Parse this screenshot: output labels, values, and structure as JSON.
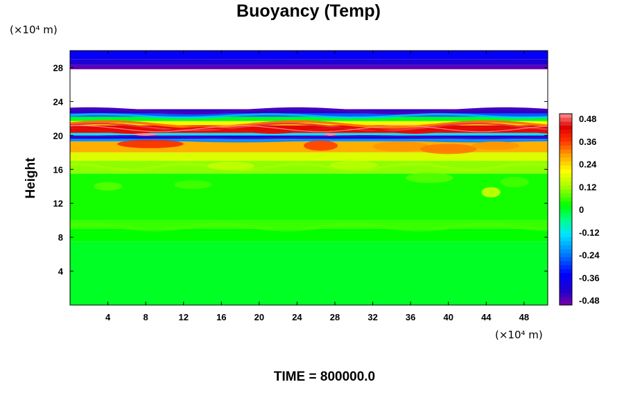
{
  "chart_data": {
    "type": "heatmap",
    "title": "Buoyancy (Temp)",
    "ylabel": "Height",
    "xunit": "(×10⁴ m)",
    "yunit": "(×10⁴ m)",
    "xlim": [
      0,
      50.5
    ],
    "ylim": [
      0,
      30
    ],
    "xticks": [
      4,
      8,
      12,
      16,
      20,
      24,
      28,
      32,
      36,
      40,
      44,
      48
    ],
    "yticks": [
      4,
      8,
      12,
      16,
      20,
      24,
      28
    ],
    "colorbar": {
      "min": -0.48,
      "max": 0.48,
      "ticks": [
        "0.48",
        "0.36",
        "0.24",
        "0.12",
        "0",
        "-0.12",
        "-0.24",
        "-0.36",
        "-0.48"
      ]
    },
    "layers": [
      {
        "from": 0,
        "to": 7.5,
        "value": 0.0
      },
      {
        "from": 7.5,
        "to": 9.0,
        "value": 0.02
      },
      {
        "from": 9.0,
        "to": 10.0,
        "value": 0.05
      },
      {
        "from": 10.0,
        "to": 15.5,
        "value": 0.03
      },
      {
        "from": 15.5,
        "to": 17.0,
        "value": 0.1
      },
      {
        "from": 17.0,
        "to": 18.0,
        "value": 0.16
      },
      {
        "from": 18.0,
        "to": 19.3,
        "value": 0.26
      },
      {
        "from": 19.3,
        "to": 19.6,
        "value": -0.2
      },
      {
        "from": 19.6,
        "to": 20.0,
        "value": -0.38
      },
      {
        "from": 20.0,
        "to": 20.3,
        "value": -0.12
      },
      {
        "from": 20.3,
        "to": 21.2,
        "value": 0.4
      },
      {
        "from": 21.2,
        "to": 21.7,
        "value": 0.2
      },
      {
        "from": 21.7,
        "to": 22.2,
        "value": 0.0
      },
      {
        "from": 22.2,
        "to": 22.6,
        "value": -0.25
      },
      {
        "from": 22.6,
        "to": 23.1,
        "value": -0.42
      },
      {
        "from": 27.8,
        "to": 28.3,
        "value": -0.46
      },
      {
        "from": 28.3,
        "to": 29.0,
        "value": -0.4
      },
      {
        "from": 29.0,
        "to": 30.0,
        "value": -0.34
      }
    ],
    "undefined_region": [
      23.1,
      27.8
    ]
  },
  "footer": {
    "time_label": "TIME = 800000.0"
  }
}
